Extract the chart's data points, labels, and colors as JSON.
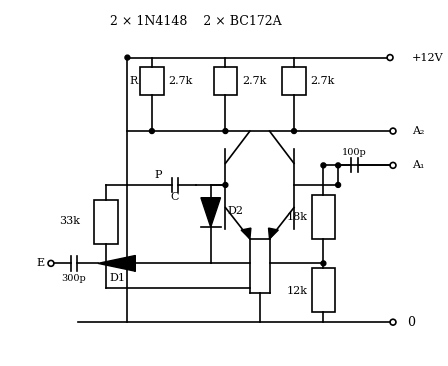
{
  "title": "2 × 1N4148    2 × BC172A",
  "bg_color": "#ffffff",
  "line_color": "#000000",
  "labels": {
    "R": "R",
    "R_val1": "2.7k",
    "R_val2": "2.7k",
    "R_33k": "33k",
    "R_18k": "18k",
    "R_12k": "12k",
    "C_300p": "300p",
    "C_100p": "100p",
    "C": "C",
    "D1": "D1",
    "D2": "D2",
    "P": "P",
    "E": "E",
    "V12": "+12V",
    "A2": "A₂",
    "A1": "A₁",
    "zero": "0"
  }
}
